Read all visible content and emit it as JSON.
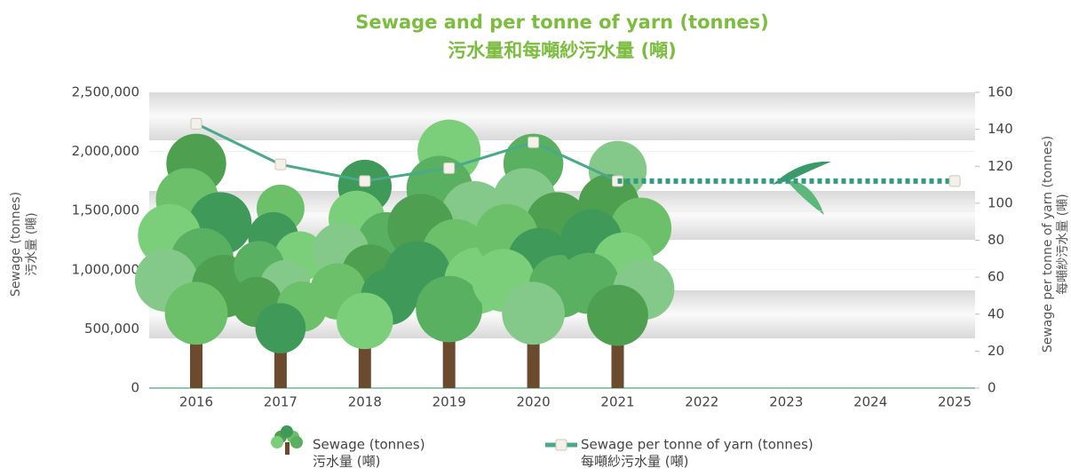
{
  "chart_data": {
    "type": "bar-line",
    "title": "Sewage and per tonne of yarn (tonnes)",
    "title_zh": "污水量和每噸紗污水量 (噸)",
    "y_label": "Sewage (tonnes)",
    "y_label_zh": "污水量 (噸)",
    "y2_label": "Sewage per tonne of yarn (tonnes)",
    "y2_label_zh": "每噸紗污水量 (噸)",
    "categories": [
      "2016",
      "2017",
      "2018",
      "2019",
      "2020",
      "2021",
      "2022",
      "2023",
      "2024",
      "2025"
    ],
    "series": [
      {
        "name": "Sewage (tonnes)",
        "name_zh": "污水量 (噸)",
        "type": "bar",
        "color": "#5cb85c",
        "values": [
          2150000,
          1720000,
          1930000,
          2270000,
          2150000,
          2090000,
          null,
          null,
          null,
          null
        ]
      },
      {
        "name": "Sewage per tonne of yarn (tonnes)",
        "name_zh": "每噸紗污水量 (噸)",
        "type": "line",
        "axis": "y2",
        "color": "#4aa98a",
        "values": [
          143,
          121,
          112,
          119,
          133,
          112,
          null,
          null,
          null,
          null
        ]
      },
      {
        "type": "line",
        "axis": "y2",
        "dashed": true,
        "color": "#2e9c7e",
        "values": [
          null,
          null,
          null,
          null,
          null,
          112,
          112,
          112,
          112,
          112
        ]
      }
    ],
    "ylim": [
      0,
      2500000
    ],
    "yticks": [
      0,
      {
        "value": 500000,
        "label": "500,000"
      },
      {
        "value": 1000000,
        "label": "1,000,000"
      },
      {
        "value": 1500000,
        "label": "1,500,000"
      },
      {
        "value": 2000000,
        "label": "2,000,000"
      },
      {
        "value": 2500000,
        "label": "2,500,000"
      }
    ],
    "y2lim": [
      0,
      160
    ],
    "y2ticks": [
      0,
      20,
      40,
      60,
      80,
      100,
      120,
      140,
      160
    ]
  }
}
